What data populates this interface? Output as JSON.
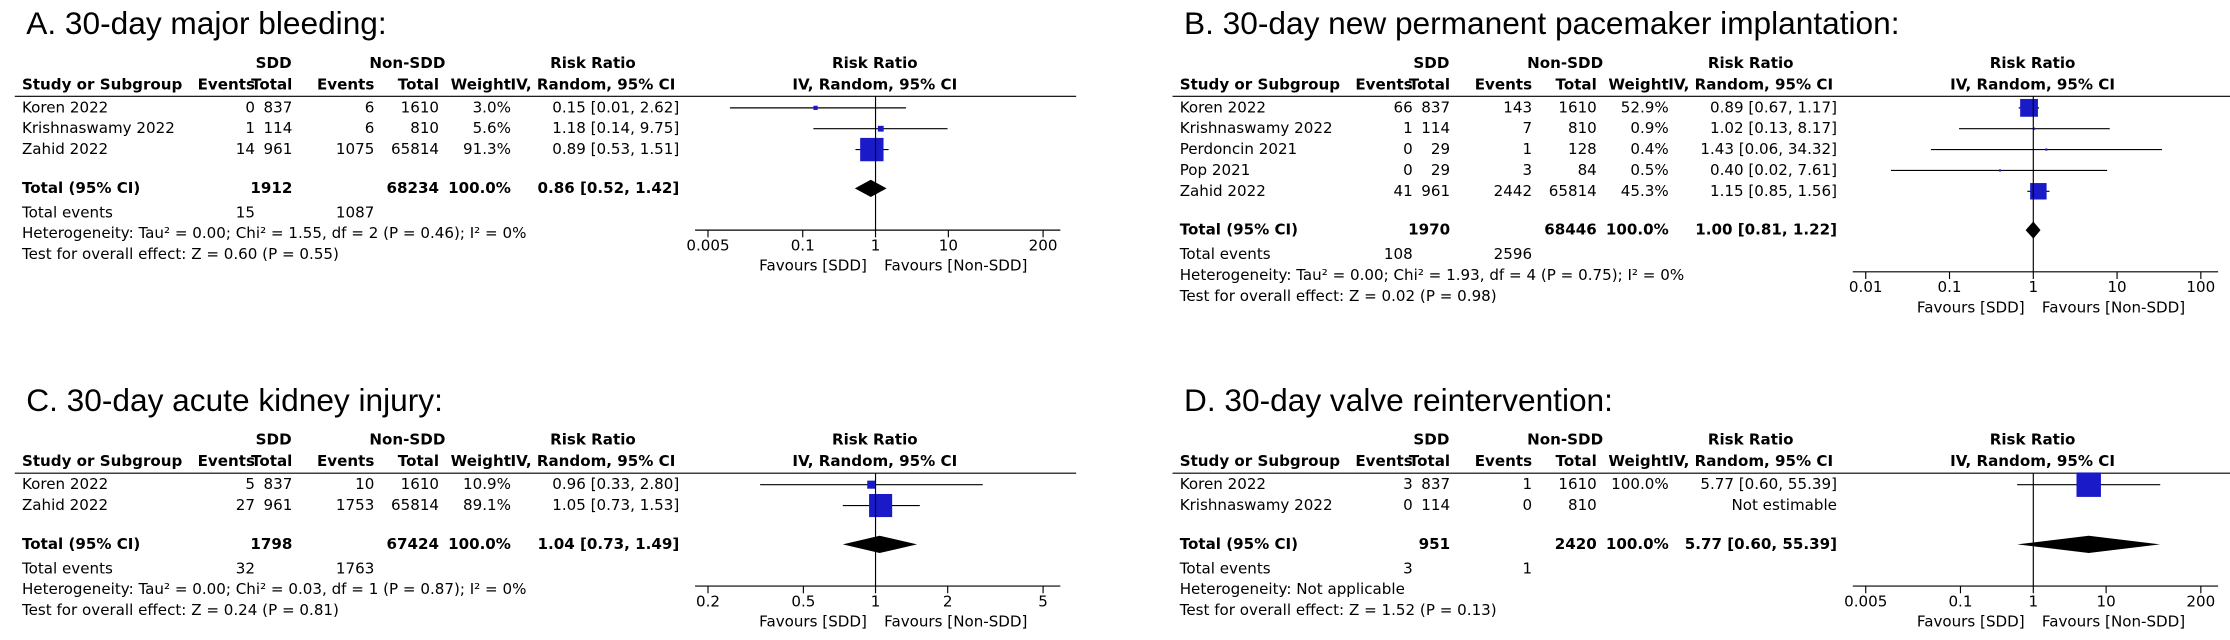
{
  "chart_data": [
    {
      "type": "forest",
      "title": "A. 30-day major bleeding:",
      "xscale": "log",
      "xlim": [
        0.005,
        200
      ],
      "xticks": [
        0.005,
        0.1,
        1,
        10,
        200
      ],
      "group1": "SDD",
      "group2": "Non-SDD",
      "study_header": "Study or Subgroup",
      "events_header": "Events",
      "total_header": "Total",
      "weight_header": "Weight",
      "effect_header": "Risk Ratio",
      "method_header": "IV, Random, 95% CI",
      "square_color": "#1a1ac8",
      "diamond_color": "#000000",
      "studies": [
        {
          "name": "Koren 2022",
          "events1": 0,
          "total1": 837,
          "events2": 6,
          "total2": 1610,
          "weight": 3.0,
          "weight_label": "3.0%",
          "rr": 0.15,
          "lower": 0.01,
          "upper": 2.62,
          "ci_label": "0.15 [0.01, 2.62]"
        },
        {
          "name": "Krishnaswamy 2022",
          "events1": 1,
          "total1": 114,
          "events2": 6,
          "total2": 810,
          "weight": 5.6,
          "weight_label": "5.6%",
          "rr": 1.18,
          "lower": 0.14,
          "upper": 9.75,
          "ci_label": "1.18 [0.14, 9.75]"
        },
        {
          "name": "Zahid 2022",
          "events1": 14,
          "total1": 961,
          "events2": 1075,
          "total2": 65814,
          "weight": 91.3,
          "weight_label": "91.3%",
          "rr": 0.89,
          "lower": 0.53,
          "upper": 1.51,
          "ci_label": "0.89 [0.53, 1.51]"
        }
      ],
      "total": {
        "name": "Total (95% CI)",
        "total1": 1912,
        "total2": 68234,
        "weight_label": "100.0%",
        "rr": 0.86,
        "lower": 0.52,
        "upper": 1.42,
        "ci_label": "0.86 [0.52, 1.42]"
      },
      "total_events": {
        "name": "Total events",
        "events1": 15,
        "events2": 1087
      },
      "heterogeneity": "Heterogeneity: Tau² = 0.00; Chi² = 1.55, df = 2 (P = 0.46); I² = 0%",
      "overall_test": "Test for overall effect: Z = 0.60 (P = 0.55)",
      "favours_left": "Favours [SDD]",
      "favours_right": "Favours [Non-SDD]"
    },
    {
      "type": "forest",
      "title": "B. 30-day new permanent pacemaker implantation:",
      "xscale": "log",
      "xlim": [
        0.01,
        100
      ],
      "xticks": [
        0.01,
        0.1,
        1,
        10,
        100
      ],
      "group1": "SDD",
      "group2": "Non-SDD",
      "study_header": "Study or Subgroup",
      "events_header": "Events",
      "total_header": "Total",
      "weight_header": "Weight",
      "effect_header": "Risk Ratio",
      "method_header": "IV, Random, 95% CI",
      "square_color": "#1a1ac8",
      "diamond_color": "#000000",
      "studies": [
        {
          "name": "Koren 2022",
          "events1": 66,
          "total1": 837,
          "events2": 143,
          "total2": 1610,
          "weight": 52.9,
          "weight_label": "52.9%",
          "rr": 0.89,
          "lower": 0.67,
          "upper": 1.17,
          "ci_label": "0.89 [0.67, 1.17]"
        },
        {
          "name": "Krishnaswamy 2022",
          "events1": 1,
          "total1": 114,
          "events2": 7,
          "total2": 810,
          "weight": 0.9,
          "weight_label": "0.9%",
          "rr": 1.02,
          "lower": 0.13,
          "upper": 8.17,
          "ci_label": "1.02 [0.13, 8.17]"
        },
        {
          "name": "Perdoncin 2021",
          "events1": 0,
          "total1": 29,
          "events2": 1,
          "total2": 128,
          "weight": 0.4,
          "weight_label": "0.4%",
          "rr": 1.43,
          "lower": 0.06,
          "upper": 34.32,
          "ci_label": "1.43 [0.06, 34.32]"
        },
        {
          "name": "Pop 2021",
          "events1": 0,
          "total1": 29,
          "events2": 3,
          "total2": 84,
          "weight": 0.5,
          "weight_label": "0.5%",
          "rr": 0.4,
          "lower": 0.02,
          "upper": 7.61,
          "ci_label": "0.40 [0.02, 7.61]"
        },
        {
          "name": "Zahid 2022",
          "events1": 41,
          "total1": 961,
          "events2": 2442,
          "total2": 65814,
          "weight": 45.3,
          "weight_label": "45.3%",
          "rr": 1.15,
          "lower": 0.85,
          "upper": 1.56,
          "ci_label": "1.15 [0.85, 1.56]"
        }
      ],
      "total": {
        "name": "Total (95% CI)",
        "total1": 1970,
        "total2": 68446,
        "weight_label": "100.0%",
        "rr": 1.0,
        "lower": 0.81,
        "upper": 1.22,
        "ci_label": "1.00 [0.81, 1.22]"
      },
      "total_events": {
        "name": "Total events",
        "events1": 108,
        "events2": 2596
      },
      "heterogeneity": "Heterogeneity: Tau² = 0.00; Chi² = 1.93, df = 4 (P = 0.75); I² = 0%",
      "overall_test": "Test for overall effect: Z = 0.02 (P = 0.98)",
      "favours_left": "Favours [SDD]",
      "favours_right": "Favours [Non-SDD]"
    },
    {
      "type": "forest",
      "title": "C. 30-day acute kidney injury:",
      "xscale": "log",
      "xlim": [
        0.2,
        5
      ],
      "xticks": [
        0.2,
        0.5,
        1,
        2,
        5
      ],
      "group1": "SDD",
      "group2": "Non-SDD",
      "study_header": "Study or Subgroup",
      "events_header": "Events",
      "total_header": "Total",
      "weight_header": "Weight",
      "effect_header": "Risk Ratio",
      "method_header": "IV, Random, 95% CI",
      "square_color": "#1a1ac8",
      "diamond_color": "#000000",
      "studies": [
        {
          "name": "Koren 2022",
          "events1": 5,
          "total1": 837,
          "events2": 10,
          "total2": 1610,
          "weight": 10.9,
          "weight_label": "10.9%",
          "rr": 0.96,
          "lower": 0.33,
          "upper": 2.8,
          "ci_label": "0.96 [0.33, 2.80]"
        },
        {
          "name": "Zahid 2022",
          "events1": 27,
          "total1": 961,
          "events2": 1753,
          "total2": 65814,
          "weight": 89.1,
          "weight_label": "89.1%",
          "rr": 1.05,
          "lower": 0.73,
          "upper": 1.53,
          "ci_label": "1.05 [0.73, 1.53]"
        }
      ],
      "total": {
        "name": "Total (95% CI)",
        "total1": 1798,
        "total2": 67424,
        "weight_label": "100.0%",
        "rr": 1.04,
        "lower": 0.73,
        "upper": 1.49,
        "ci_label": "1.04 [0.73, 1.49]"
      },
      "total_events": {
        "name": "Total events",
        "events1": 32,
        "events2": 1763
      },
      "heterogeneity": "Heterogeneity: Tau² = 0.00; Chi² = 0.03, df = 1 (P = 0.87); I² = 0%",
      "overall_test": "Test for overall effect: Z = 0.24 (P = 0.81)",
      "favours_left": "Favours [SDD]",
      "favours_right": "Favours [Non-SDD]"
    },
    {
      "type": "forest",
      "title": "D. 30-day valve reintervention:",
      "xscale": "log",
      "xlim": [
        0.005,
        200
      ],
      "xticks": [
        0.005,
        0.1,
        1,
        10,
        200
      ],
      "group1": "SDD",
      "group2": "Non-SDD",
      "study_header": "Study or Subgroup",
      "events_header": "Events",
      "total_header": "Total",
      "weight_header": "Weight",
      "effect_header": "Risk Ratio",
      "method_header": "IV, Random, 95% CI",
      "square_color": "#1a1ac8",
      "diamond_color": "#000000",
      "studies": [
        {
          "name": "Koren 2022",
          "events1": 3,
          "total1": 837,
          "events2": 1,
          "total2": 1610,
          "weight": 100.0,
          "weight_label": "100.0%",
          "rr": 5.77,
          "lower": 0.6,
          "upper": 55.39,
          "ci_label": "5.77 [0.60, 55.39]"
        },
        {
          "name": "Krishnaswamy 2022",
          "events1": 0,
          "total1": 114,
          "events2": 0,
          "total2": 810,
          "weight": null,
          "weight_label": null,
          "rr": null,
          "lower": null,
          "upper": null,
          "ci_label": "Not estimable"
        }
      ],
      "total": {
        "name": "Total (95% CI)",
        "total1": 951,
        "total2": 2420,
        "weight_label": "100.0%",
        "rr": 5.77,
        "lower": 0.6,
        "upper": 55.39,
        "ci_label": "5.77 [0.60, 55.39]"
      },
      "total_events": {
        "name": "Total events",
        "events1": 3,
        "events2": 1
      },
      "heterogeneity": "Heterogeneity: Not applicable",
      "overall_test": "Test for overall effect: Z = 1.52 (P = 0.13)",
      "favours_left": "Favours [SDD]",
      "favours_right": "Favours [Non-SDD]"
    }
  ]
}
